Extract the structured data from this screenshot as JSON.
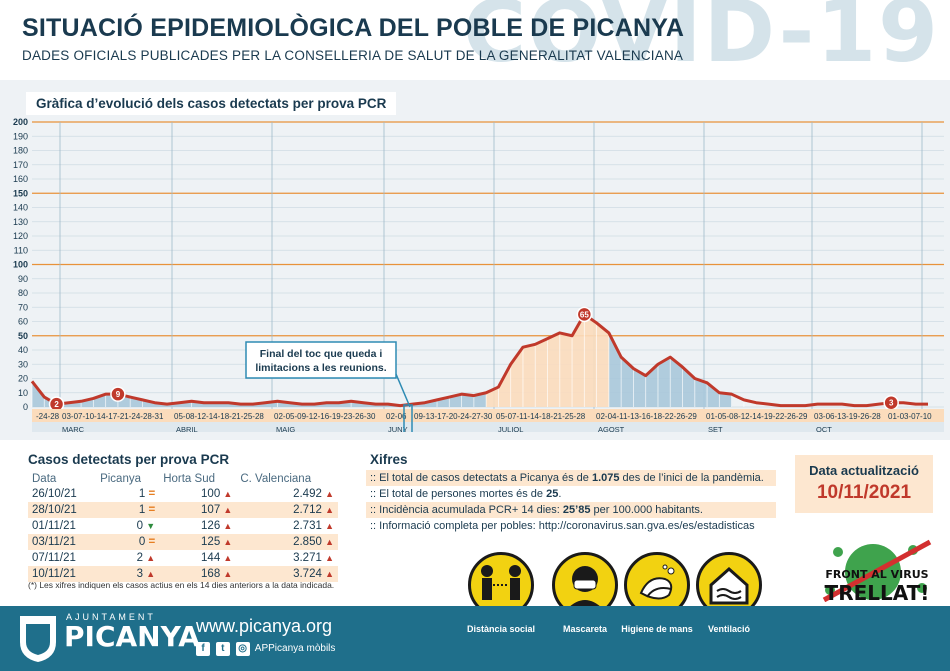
{
  "header": {
    "title": "SITUACIÓ EPIDEMIOLÒGICA DEL POBLE DE PICANYA",
    "subtitle": "DADES OFICIALS PUBLICADES PER LA CONSELLERIA DE SALUT DE LA GENERALITAT VALENCIANA",
    "watermark": "COVID-19"
  },
  "chart_data": {
    "type": "area",
    "title": "Gràfica d’evolució dels casos detectats per prova PCR",
    "y_ticks": [
      "200",
      "190",
      "180",
      "170",
      "160",
      "150",
      "140",
      "130",
      "120",
      "110",
      "100",
      "90",
      "80",
      "70",
      "60",
      "50",
      "40",
      "30",
      "20",
      "10",
      "0"
    ],
    "ylim": [
      0,
      200
    ],
    "x_ticks": [
      "-24-28",
      "03-07-10-14-17-21-24-28-31",
      "05-08-12-14-18-21-25-28",
      "02-05-09-12-16-19-23-26-30",
      "02-06",
      "09-13-17-20-24-27-30",
      "05-07-11-14-18-21-25-28",
      "02-04-11-13-16-18-22-26-29",
      "01-05-08-12-14-19-22-26-29",
      "03-06-13-19-26-28",
      "01-03-07-10"
    ],
    "months": [
      "MARÇ",
      "ABRIL",
      "MAIG",
      "JUNY",
      "JULIOL",
      "AGOST",
      "SET",
      "OCT"
    ],
    "values": [
      18,
      7,
      2,
      3,
      4,
      6,
      9,
      9,
      7,
      5,
      3,
      2,
      3,
      4,
      3,
      3,
      3,
      2,
      2,
      3,
      4,
      3,
      2,
      2,
      3,
      3,
      4,
      3,
      2,
      2,
      1,
      2,
      3,
      5,
      7,
      9,
      8,
      10,
      14,
      30,
      42,
      44,
      48,
      52,
      50,
      65,
      59,
      52,
      35,
      27,
      22,
      30,
      35,
      28,
      20,
      17,
      10,
      9,
      5,
      3,
      2,
      1,
      1,
      1,
      2,
      2,
      2,
      1,
      1,
      2,
      3,
      3,
      2,
      2
    ],
    "labeled_points": [
      {
        "label": "2",
        "value": 2
      },
      {
        "label": "9",
        "value": 9
      },
      {
        "label": "65",
        "value": 65
      },
      {
        "label": "3",
        "value": 3
      }
    ],
    "annotation": "Final del toc que queda i limitacions a les reunions.",
    "colors": {
      "line": "#c0392b",
      "fill_blue": "#a9c8da",
      "fill_orange": "#fbdcbc",
      "grid": "#e8923a"
    }
  },
  "cases_table": {
    "title": "Casos detectats per prova PCR",
    "headers": [
      "Data",
      "Picanya",
      "Horta Sud",
      "C. Valenciana"
    ],
    "rows": [
      {
        "date": "26/10/21",
        "picanya": "1",
        "trend": "=",
        "horta": "100",
        "cv": "2.492"
      },
      {
        "date": "28/10/21",
        "picanya": "1",
        "trend": "=",
        "horta": "107",
        "cv": "2.712"
      },
      {
        "date": "01/11/21",
        "picanya": "0",
        "trend": "down",
        "horta": "126",
        "cv": "2.731"
      },
      {
        "date": "03/11/21",
        "picanya": "0",
        "trend": "=",
        "horta": "125",
        "cv": "2.850"
      },
      {
        "date": "07/11/21",
        "picanya": "2",
        "trend": "up",
        "horta": "144",
        "cv": "3.271"
      },
      {
        "date": "10/11/21",
        "picanya": "3",
        "trend": "up",
        "horta": "168",
        "cv": "3.724"
      }
    ],
    "note": "(*) Les xifres indiquen els casos actius en els 14 dies anteriors a la data indicada."
  },
  "xifres": {
    "title": "Xifres",
    "line1_pre": ":: El total de casos detectats a Picanya és de ",
    "line1_bold": "1.075",
    "line1_post": " des de l’inici de la pandèmia.",
    "line2_pre": ":: El total de persones mortes és de ",
    "line2_bold": "25",
    "line2_post": ".",
    "line3_pre": ":: Incidència acumulada PCR+ 14 dies: ",
    "line3_bold": "25’85",
    "line3_post": " per 100.000 habitants.",
    "line4": ":: Informació completa per pobles: http://coronavirus.san.gva.es/es/estadisticas"
  },
  "update": {
    "label": "Data actualització",
    "date": "10/11/2021"
  },
  "footer": {
    "logo_small": "AJUNTAMENT",
    "logo": "PICANYA",
    "web": "www.picanya.org",
    "app": "APPicanya mòbils",
    "icons": [
      {
        "label": "Distància social",
        "icon": "distance-icon"
      },
      {
        "label": "Mascareta",
        "icon": "mask-icon"
      },
      {
        "label": "Higiene de mans",
        "icon": "handwash-icon"
      },
      {
        "label": "Ventilació",
        "icon": "ventilation-icon"
      }
    ],
    "badge_line1": "FRONT AL VIRUS",
    "badge_line2": "TRELLAT!"
  }
}
